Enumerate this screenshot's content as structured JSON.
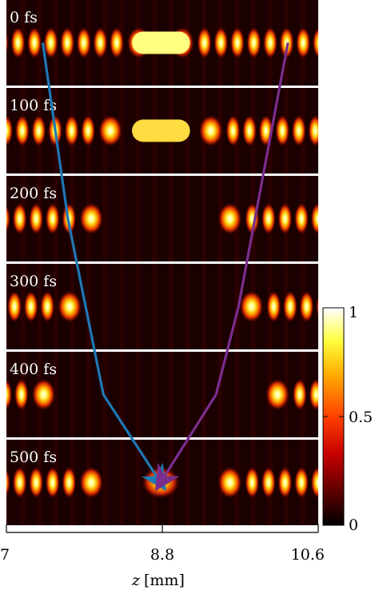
{
  "chart_data": {
    "type": "heatmap",
    "panels": [
      {
        "label": "0 fs",
        "t_fs": 0,
        "gap_half_mm": 0.0,
        "spacing_mm": 0.19
      },
      {
        "label": "100 fs",
        "t_fs": 100,
        "gap_half_mm": 0.33,
        "spacing_mm": 0.19
      },
      {
        "label": "200 fs",
        "t_fs": 200,
        "gap_half_mm": 0.55,
        "spacing_mm": 0.19
      },
      {
        "label": "300 fs",
        "t_fs": 300,
        "gap_half_mm": 0.8,
        "spacing_mm": 0.19
      },
      {
        "label": "400 fs",
        "t_fs": 400,
        "gap_half_mm": 1.1,
        "spacing_mm": 0.19
      },
      {
        "label": "500 fs",
        "t_fs": 500,
        "gap_half_mm": 0.55,
        "spacing_mm": 0.19
      }
    ],
    "xlim": [
      7,
      10.6
    ],
    "x_ticks": [
      "7",
      "8.8",
      "10.6"
    ],
    "x_tick_values": [
      7,
      8.8,
      10.6
    ],
    "xlabel_var": "z",
    "xlabel_unit": "[mm]",
    "colorbar": {
      "range": [
        0,
        1
      ],
      "ticks": [
        "0",
        "0.5",
        "1"
      ],
      "tick_values": [
        0,
        0.5,
        1
      ],
      "colormap": "hot"
    },
    "arrows": [
      {
        "name": "left-arrow",
        "color": "#1f78b4",
        "points_z_t": [
          [
            7.42,
            0
          ],
          [
            7.71,
            200
          ],
          [
            8.12,
            400
          ],
          [
            8.78,
            500
          ]
        ]
      },
      {
        "name": "right-arrow",
        "color": "#7b2d8e",
        "points_z_t": [
          [
            10.25,
            0
          ],
          [
            9.68,
            300
          ],
          [
            9.42,
            400
          ],
          [
            8.78,
            500
          ]
        ]
      }
    ]
  }
}
